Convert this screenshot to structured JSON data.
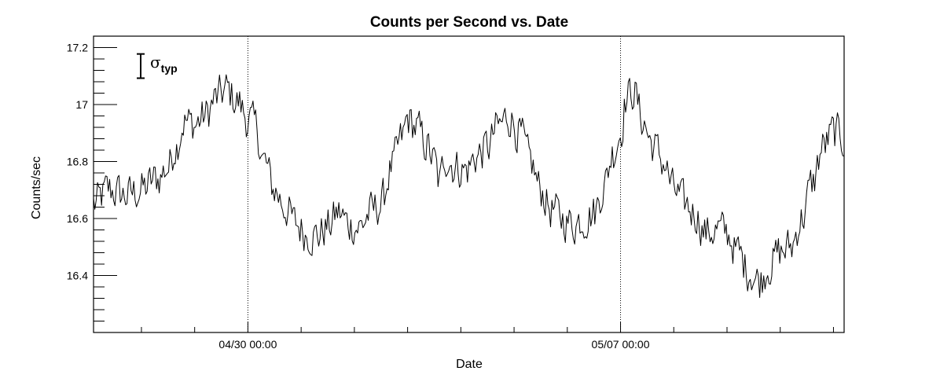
{
  "chart_data": {
    "type": "line",
    "title": "Counts per Second vs. Date",
    "xlabel": "Date",
    "ylabel": "Counts/sec",
    "xlim_days": [
      -2.9,
      11.2
    ],
    "ylim": [
      16.2,
      17.24
    ],
    "y_major_ticks": [
      16.4,
      16.6,
      16.8,
      17,
      17.2
    ],
    "y_tick_labels": [
      "16.4",
      "16.6",
      "16.8",
      "17",
      "17.2"
    ],
    "y_minor_step": 0.04,
    "x_major_ticks": [
      {
        "day": 0,
        "label": "04/30 00:00"
      },
      {
        "day": 7,
        "label": "05/07 00:00"
      }
    ],
    "x_minor_step_days": 1,
    "sigma_label": {
      "symbol": "σ",
      "sub": "typ",
      "size": 0.085,
      "center": 17.135
    },
    "grid": "x-major-dotted",
    "anchors": [
      [
        -2.9,
        16.65
      ],
      [
        -2.6,
        16.7
      ],
      [
        -2.3,
        16.68
      ],
      [
        -2.0,
        16.7
      ],
      [
        -1.7,
        16.74
      ],
      [
        -1.5,
        16.78
      ],
      [
        -1.35,
        16.86
      ],
      [
        -1.2,
        16.94
      ],
      [
        -1.0,
        16.93
      ],
      [
        -0.8,
        16.96
      ],
      [
        -0.6,
        17.02
      ],
      [
        -0.4,
        17.05
      ],
      [
        -0.2,
        17.01
      ],
      [
        0.0,
        16.95
      ],
      [
        0.15,
        16.92
      ],
      [
        0.3,
        16.8
      ],
      [
        0.5,
        16.7
      ],
      [
        0.7,
        16.64
      ],
      [
        0.9,
        16.58
      ],
      [
        1.1,
        16.55
      ],
      [
        1.3,
        16.54
      ],
      [
        1.5,
        16.57
      ],
      [
        1.7,
        16.62
      ],
      [
        1.9,
        16.58
      ],
      [
        2.1,
        16.57
      ],
      [
        2.3,
        16.62
      ],
      [
        2.5,
        16.65
      ],
      [
        2.7,
        16.78
      ],
      [
        2.9,
        16.88
      ],
      [
        3.0,
        16.95
      ],
      [
        3.15,
        16.92
      ],
      [
        3.35,
        16.86
      ],
      [
        3.5,
        16.8
      ],
      [
        3.6,
        16.72
      ],
      [
        3.7,
        16.82
      ],
      [
        3.9,
        16.78
      ],
      [
        4.1,
        16.77
      ],
      [
        4.3,
        16.82
      ],
      [
        4.5,
        16.85
      ],
      [
        4.7,
        16.92
      ],
      [
        4.9,
        16.96
      ],
      [
        5.1,
        16.9
      ],
      [
        5.3,
        16.8
      ],
      [
        5.5,
        16.7
      ],
      [
        5.7,
        16.63
      ],
      [
        5.9,
        16.6
      ],
      [
        6.1,
        16.58
      ],
      [
        6.3,
        16.6
      ],
      [
        6.5,
        16.62
      ],
      [
        6.7,
        16.72
      ],
      [
        6.85,
        16.83
      ],
      [
        7.0,
        16.9
      ],
      [
        7.1,
        17.02
      ],
      [
        7.25,
        17.05
      ],
      [
        7.4,
        16.95
      ],
      [
        7.6,
        16.86
      ],
      [
        7.8,
        16.8
      ],
      [
        8.0,
        16.7
      ],
      [
        8.2,
        16.65
      ],
      [
        8.4,
        16.62
      ],
      [
        8.6,
        16.55
      ],
      [
        8.8,
        16.56
      ],
      [
        9.0,
        16.55
      ],
      [
        9.2,
        16.48
      ],
      [
        9.4,
        16.42
      ],
      [
        9.6,
        16.38
      ],
      [
        9.8,
        16.44
      ],
      [
        10.0,
        16.48
      ],
      [
        10.2,
        16.5
      ],
      [
        10.4,
        16.6
      ],
      [
        10.6,
        16.72
      ],
      [
        10.8,
        16.85
      ],
      [
        11.0,
        16.9
      ],
      [
        11.2,
        16.88
      ]
    ]
  }
}
